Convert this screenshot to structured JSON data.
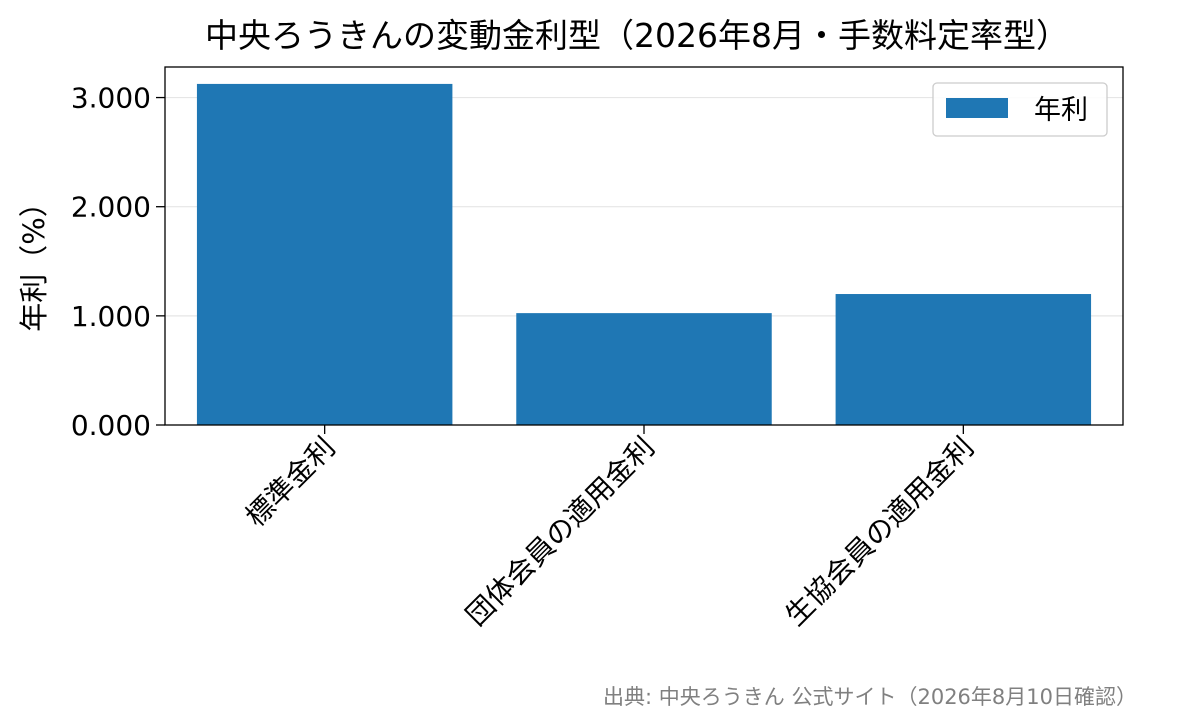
{
  "chart_data": {
    "type": "bar",
    "title": "中央ろうきんの変動金利型（2026年8月・手数料定率型）",
    "ylabel": "年利（%）",
    "xlabel": "",
    "categories": [
      "標準金利",
      "団体会員の適用金利",
      "生協会員の適用金利"
    ],
    "series": [
      {
        "name": "年利",
        "values": [
          3.125,
          1.025,
          1.2
        ]
      }
    ],
    "ylim": [
      0,
      3.28
    ],
    "yticks": [
      0,
      1,
      2,
      3
    ],
    "ytick_labels": [
      "0.000",
      "1.000",
      "2.000",
      "3.000"
    ],
    "grid": "horizontal",
    "legend_position": "top-right",
    "bar_color": "#1f77b4",
    "source": "出典: 中央ろうきん 公式サイト（2026年8月10日確認）"
  }
}
